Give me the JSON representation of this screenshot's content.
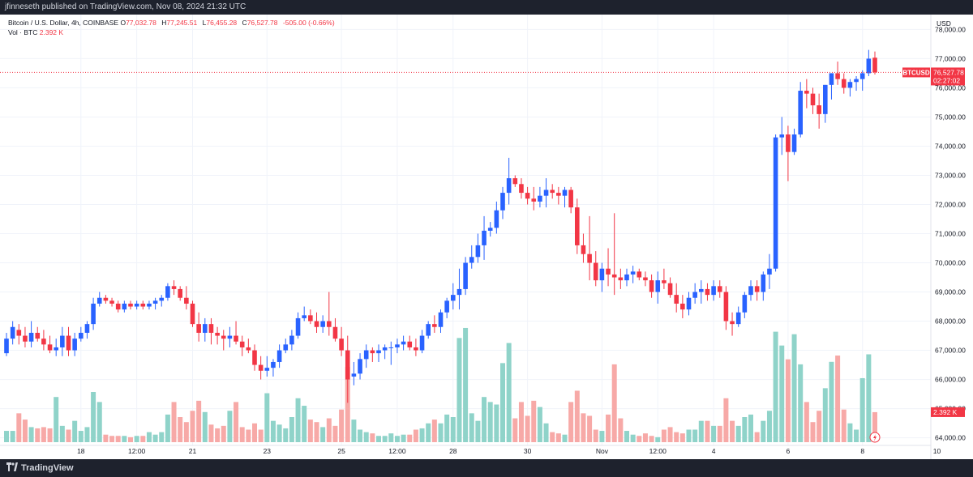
{
  "header": {
    "published_text": "jfinneseth published on TradingView.com, Nov 08, 2024 21:32 UTC"
  },
  "legend": {
    "symbol": "Bitcoin / U.S. Dollar, 4h, COINBASE",
    "open_label": "O",
    "open": "77,032.78",
    "high_label": "H",
    "high": "77,245.51",
    "low_label": "L",
    "low": "76,455.28",
    "close_label": "C",
    "close": "76,527.78",
    "change": "-505.00 (-0.66%)",
    "volume_label": "Vol · BTC",
    "volume_value": "2.392 K"
  },
  "price_tag": {
    "symbol": "BTCUSD",
    "price": "76,527.78",
    "countdown": "02:27:02"
  },
  "volume_tag": "2.392 K",
  "footer": {
    "brand": "TradingView"
  },
  "colors": {
    "up": "#2962ff",
    "down": "#f23645",
    "vol_up": "#8fd3c9",
    "vol_down": "#f7a9a7",
    "grid": "#f0f3fa"
  },
  "chart_data": {
    "type": "candlestick",
    "currency_label": "USD",
    "y_ticks": [
      "64,000.00",
      "65,000.00",
      "66,000.00",
      "67,000.00",
      "68,000.00",
      "69,000.00",
      "70,000.00",
      "71,000.00",
      "72,000.00",
      "73,000.00",
      "74,000.00",
      "75,000.00",
      "76,000.00",
      "77,000.00",
      "78,000.00"
    ],
    "ylim": [
      63850,
      78400
    ],
    "x_ticks": [
      {
        "label": "18",
        "index": 12
      },
      {
        "label": "12:00",
        "index": 21
      },
      {
        "label": "21",
        "index": 30
      },
      {
        "label": "23",
        "index": 42
      },
      {
        "label": "25",
        "index": 54
      },
      {
        "label": "12:00",
        "index": 63
      },
      {
        "label": "28",
        "index": 72
      },
      {
        "label": "30",
        "index": 84
      },
      {
        "label": "Nov",
        "index": 96
      },
      {
        "label": "12:00",
        "index": 105
      },
      {
        "label": "4",
        "index": 114
      },
      {
        "label": "6",
        "index": 126
      },
      {
        "label": "8",
        "index": 138
      },
      {
        "label": "10",
        "index": 150
      }
    ],
    "candles": [
      [
        66900,
        67600,
        66800,
        67400,
        0.9
      ],
      [
        67400,
        68000,
        67200,
        67800,
        0.9
      ],
      [
        67700,
        67900,
        67200,
        67500,
        2.3
      ],
      [
        67500,
        67800,
        67100,
        67300,
        1.8
      ],
      [
        67300,
        68000,
        67100,
        67600,
        1.2
      ],
      [
        67600,
        67800,
        67300,
        67400,
        1.1
      ],
      [
        67400,
        67700,
        67000,
        67200,
        1.2
      ],
      [
        67200,
        67500,
        66900,
        67000,
        1.1
      ],
      [
        67000,
        67400,
        66800,
        67100,
        3.6
      ],
      [
        67100,
        67800,
        66800,
        67500,
        1.3
      ],
      [
        67500,
        67800,
        66800,
        67000,
        1.0
      ],
      [
        67000,
        67600,
        66800,
        67400,
        1.7
      ],
      [
        67400,
        67800,
        67300,
        67600,
        0.9
      ],
      [
        67600,
        68000,
        67400,
        67900,
        1.2
      ],
      [
        67900,
        68800,
        67700,
        68600,
        4.0
      ],
      [
        68600,
        69000,
        68500,
        68800,
        3.2
      ],
      [
        68800,
        68900,
        68600,
        68700,
        0.6
      ],
      [
        68700,
        68800,
        68500,
        68600,
        0.5
      ],
      [
        68600,
        68700,
        68300,
        68400,
        0.5
      ],
      [
        68400,
        68700,
        68300,
        68600,
        0.5
      ],
      [
        68600,
        68700,
        68400,
        68500,
        0.4
      ],
      [
        68500,
        68700,
        68400,
        68600,
        0.5
      ],
      [
        68600,
        68700,
        68400,
        68500,
        0.5
      ],
      [
        68500,
        68700,
        68400,
        68600,
        0.8
      ],
      [
        68600,
        68800,
        68400,
        68700,
        0.6
      ],
      [
        68700,
        68900,
        68500,
        68800,
        0.8
      ],
      [
        68800,
        69300,
        68700,
        69200,
        2.2
      ],
      [
        69200,
        69400,
        68900,
        69100,
        3.2
      ],
      [
        69100,
        69200,
        68700,
        68800,
        2.0
      ],
      [
        68800,
        69200,
        68400,
        68600,
        1.6
      ],
      [
        68600,
        68700,
        67800,
        67900,
        2.5
      ],
      [
        67900,
        68300,
        67300,
        67600,
        3.3
      ],
      [
        67600,
        68100,
        67300,
        67900,
        2.4
      ],
      [
        67900,
        68100,
        67200,
        67600,
        1.4
      ],
      [
        67600,
        67800,
        67200,
        67500,
        1.1
      ],
      [
        67500,
        67700,
        67000,
        67400,
        1.3
      ],
      [
        67400,
        67800,
        67100,
        67500,
        2.5
      ],
      [
        67500,
        68000,
        67200,
        67300,
        3.2
      ],
      [
        67300,
        67500,
        66800,
        67100,
        1.2
      ],
      [
        67100,
        67400,
        66900,
        67000,
        1.0
      ],
      [
        67000,
        67200,
        66300,
        66500,
        1.5
      ],
      [
        66500,
        66800,
        66000,
        66300,
        1.0
      ],
      [
        66300,
        66800,
        66100,
        66400,
        3.9
      ],
      [
        66400,
        66700,
        66100,
        66600,
        1.7
      ],
      [
        66600,
        67200,
        66400,
        67000,
        1.4
      ],
      [
        67000,
        67400,
        66900,
        67200,
        1.1
      ],
      [
        67200,
        67700,
        67000,
        67500,
        2.0
      ],
      [
        67500,
        68300,
        67400,
        68100,
        3.5
      ],
      [
        68100,
        68500,
        68000,
        68200,
        2.9
      ],
      [
        68200,
        68400,
        67900,
        68000,
        1.8
      ],
      [
        68000,
        68300,
        67600,
        67800,
        1.6
      ],
      [
        67800,
        68200,
        67600,
        68000,
        1.2
      ],
      [
        68000,
        69000,
        67500,
        67800,
        1.9
      ],
      [
        67800,
        68100,
        67300,
        67400,
        1.3
      ],
      [
        67400,
        67800,
        66800,
        67000,
        2.6
      ],
      [
        67000,
        67500,
        65200,
        66000,
        6.0
      ],
      [
        66100,
        66600,
        65800,
        66200,
        1.8
      ],
      [
        66200,
        66900,
        66000,
        66700,
        1.0
      ],
      [
        66700,
        67200,
        66400,
        67000,
        0.8
      ],
      [
        67000,
        67100,
        66600,
        66900,
        0.7
      ],
      [
        66900,
        67200,
        66600,
        67000,
        0.5
      ],
      [
        67000,
        67200,
        66700,
        67100,
        0.5
      ],
      [
        67100,
        67300,
        66500,
        67100,
        0.7
      ],
      [
        67100,
        67400,
        66900,
        67200,
        0.5
      ],
      [
        67200,
        67500,
        67000,
        67300,
        0.6
      ],
      [
        67300,
        67500,
        67000,
        67100,
        0.6
      ],
      [
        67100,
        67400,
        66800,
        67000,
        1.0
      ],
      [
        67000,
        67700,
        66900,
        67500,
        1.1
      ],
      [
        67500,
        68000,
        67400,
        67900,
        1.5
      ],
      [
        67900,
        68200,
        67600,
        67800,
        1.8
      ],
      [
        67800,
        68400,
        67600,
        68300,
        1.5
      ],
      [
        68300,
        68800,
        68100,
        68700,
        2.2
      ],
      [
        68700,
        69300,
        68400,
        68900,
        2.0
      ],
      [
        68900,
        69800,
        68400,
        69100,
        8.3
      ],
      [
        69100,
        70200,
        68900,
        70000,
        9.1
      ],
      [
        70000,
        70600,
        69800,
        70200,
        2.3
      ],
      [
        70200,
        71000,
        70000,
        70600,
        1.7
      ],
      [
        70600,
        71600,
        70100,
        71100,
        3.6
      ],
      [
        71100,
        71400,
        70900,
        71200,
        3.2
      ],
      [
        71200,
        72100,
        71000,
        71800,
        3.0
      ],
      [
        71800,
        72600,
        71500,
        72400,
        6.3
      ],
      [
        72400,
        73600,
        72000,
        72900,
        7.9
      ],
      [
        72900,
        73000,
        72600,
        72700,
        1.9
      ],
      [
        72700,
        72900,
        72200,
        72400,
        3.2
      ],
      [
        72400,
        72600,
        72000,
        72200,
        2.1
      ],
      [
        72200,
        72600,
        71800,
        72100,
        3.3
      ],
      [
        72100,
        72600,
        71900,
        72300,
        2.8
      ],
      [
        72300,
        72900,
        71900,
        72500,
        1.5
      ],
      [
        72500,
        72700,
        72200,
        72400,
        0.8
      ],
      [
        72400,
        72600,
        72000,
        72300,
        0.7
      ],
      [
        72300,
        72600,
        71900,
        72500,
        0.6
      ],
      [
        72500,
        72600,
        71700,
        71900,
        3.2
      ],
      [
        71900,
        72200,
        70300,
        70600,
        4.1
      ],
      [
        70600,
        71000,
        70000,
        70300,
        2.3
      ],
      [
        70300,
        71600,
        69400,
        70000,
        2.1
      ],
      [
        70000,
        70400,
        69200,
        69400,
        1.0
      ],
      [
        69400,
        70000,
        69000,
        69800,
        0.9
      ],
      [
        69800,
        70500,
        69200,
        69600,
        2.2
      ],
      [
        69600,
        71700,
        68900,
        69500,
        6.2
      ],
      [
        69500,
        69800,
        69100,
        69400,
        1.9
      ],
      [
        69400,
        69800,
        69200,
        69600,
        0.9
      ],
      [
        69600,
        69900,
        69300,
        69700,
        0.6
      ],
      [
        69700,
        69800,
        69400,
        69500,
        0.5
      ],
      [
        69500,
        69700,
        69200,
        69400,
        0.7
      ],
      [
        69400,
        69600,
        68800,
        69000,
        0.5
      ],
      [
        69000,
        69700,
        68600,
        69400,
        0.4
      ],
      [
        69400,
        69800,
        69100,
        69300,
        1.0
      ],
      [
        69300,
        69500,
        68800,
        68900,
        1.2
      ],
      [
        68900,
        69300,
        68300,
        68600,
        0.8
      ],
      [
        68600,
        68900,
        68100,
        68400,
        0.7
      ],
      [
        68400,
        69000,
        68200,
        68800,
        1.0
      ],
      [
        68800,
        69300,
        68600,
        69000,
        1.0
      ],
      [
        69000,
        69400,
        68600,
        69100,
        1.7
      ],
      [
        69100,
        69300,
        68700,
        68900,
        1.7
      ],
      [
        68900,
        69400,
        68700,
        69200,
        1.3
      ],
      [
        69200,
        69400,
        68800,
        69000,
        1.3
      ],
      [
        69000,
        69200,
        67700,
        68000,
        3.5
      ],
      [
        68000,
        68300,
        67500,
        67900,
        1.7
      ],
      [
        67900,
        68500,
        67800,
        68300,
        1.3
      ],
      [
        68300,
        69000,
        68100,
        68900,
        2.0
      ],
      [
        68900,
        69400,
        68700,
        69200,
        2.2
      ],
      [
        69200,
        69400,
        68700,
        69000,
        0.8
      ],
      [
        69000,
        69700,
        68700,
        69600,
        1.7
      ],
      [
        69600,
        70300,
        69100,
        69800,
        2.5
      ],
      [
        69800,
        74400,
        69700,
        74300,
        8.8
      ],
      [
        74300,
        75000,
        73700,
        74400,
        7.7
      ],
      [
        74400,
        74700,
        72800,
        73800,
        6.6
      ],
      [
        73800,
        74600,
        73700,
        74400,
        8.6
      ],
      [
        74400,
        76200,
        74300,
        75900,
        6.2
      ],
      [
        75900,
        76300,
        75300,
        75800,
        3.2
      ],
      [
        75800,
        76000,
        75100,
        75400,
        1.6
      ],
      [
        75400,
        75800,
        74600,
        75100,
        2.5
      ],
      [
        75100,
        76100,
        74800,
        76100,
        4.3
      ],
      [
        76100,
        76500,
        75600,
        76500,
        6.4
      ],
      [
        76500,
        76900,
        76100,
        76300,
        6.9
      ],
      [
        76300,
        76500,
        75800,
        76000,
        2.6
      ],
      [
        76000,
        76300,
        75700,
        76200,
        1.5
      ],
      [
        76200,
        76400,
        75900,
        76300,
        1.0
      ],
      [
        76300,
        76600,
        75900,
        76500,
        5.1
      ],
      [
        76500,
        77300,
        76400,
        77000,
        7.0
      ],
      [
        77032.78,
        77245.51,
        76455.28,
        76527.78,
        2.392
      ]
    ]
  }
}
